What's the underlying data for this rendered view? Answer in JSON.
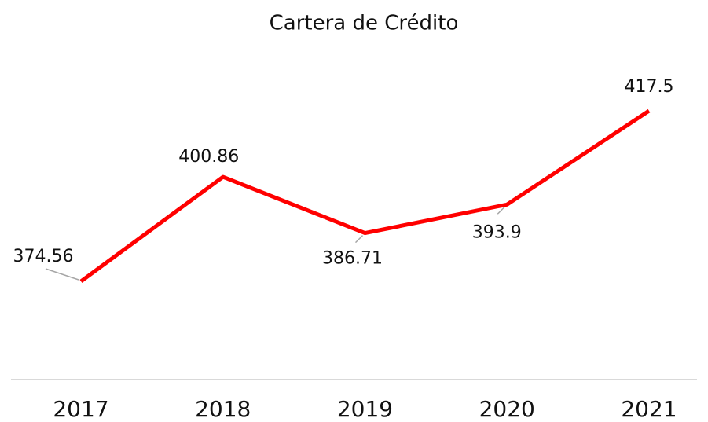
{
  "chart_data": {
    "type": "line",
    "title": "Cartera de Crédito",
    "categories": [
      "2017",
      "2018",
      "2019",
      "2020",
      "2021"
    ],
    "series": [
      {
        "color": "#ff0000",
        "values": [
          374.56,
          400.86,
          386.71,
          393.9,
          417.5
        ]
      }
    ]
  }
}
